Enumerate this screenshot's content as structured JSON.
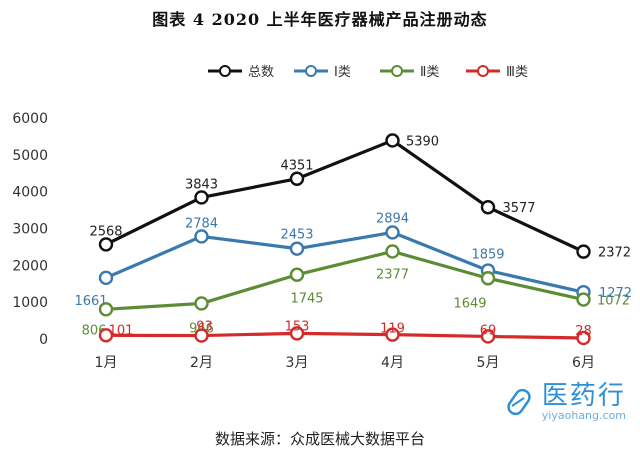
{
  "chart_data": {
    "type": "line",
    "title": "图表 4    2020 上半年医疗器械产品注册动态",
    "categories": [
      "1月",
      "2月",
      "3月",
      "4月",
      "5月",
      "6月"
    ],
    "series": [
      {
        "name": "总数",
        "color": "#111111",
        "values": [
          2568,
          3843,
          4351,
          5390,
          3577,
          2372
        ]
      },
      {
        "name": "Ⅰ类",
        "color": "#3a79ad",
        "values": [
          1661,
          2784,
          2453,
          2894,
          1859,
          1272
        ]
      },
      {
        "name": "Ⅱ类",
        "color": "#5c8c34",
        "values": [
          806,
          966,
          1745,
          2377,
          1649,
          1072
        ]
      },
      {
        "name": "Ⅲ类",
        "color": "#d42a2a",
        "values": [
          101,
          93,
          153,
          119,
          69,
          28
        ]
      }
    ],
    "ylim": [
      0,
      6000
    ],
    "yticks": [
      0,
      1000,
      2000,
      3000,
      4000,
      5000,
      6000
    ],
    "grid": false,
    "legend_position": "top",
    "xlabel": "",
    "ylabel": ""
  },
  "source_note": "数据来源：众成医械大数据平台",
  "watermark": {
    "name": "医药行",
    "url": "yiyaohang.com"
  }
}
